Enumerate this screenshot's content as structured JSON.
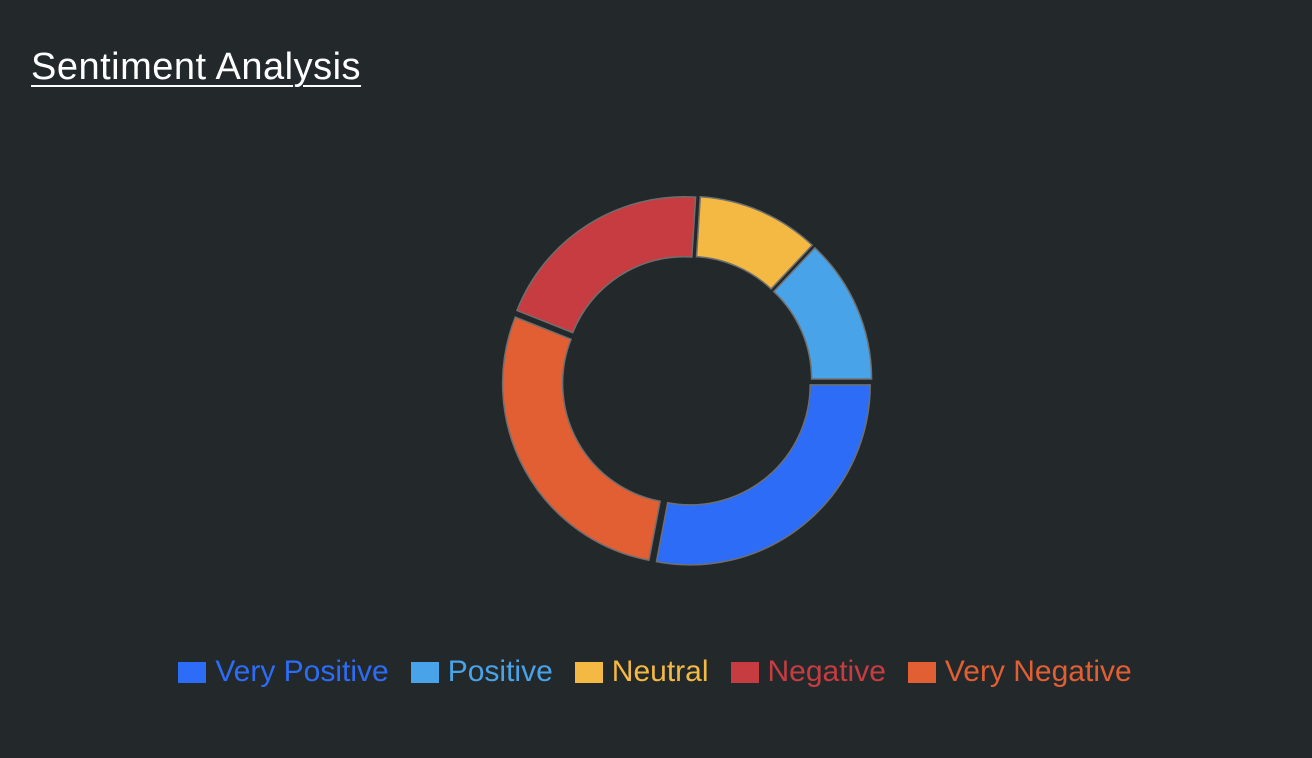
{
  "page": {
    "title": "Sentiment Analysis"
  },
  "chart_data": {
    "type": "pie",
    "variant": "donut",
    "title": "Sentiment Analysis",
    "series": [
      {
        "name": "Very Positive",
        "value": 28,
        "color": "#2d6cf6"
      },
      {
        "name": "Very Negative",
        "value": 28,
        "color": "#e25e33"
      },
      {
        "name": "Negative",
        "value": 20,
        "color": "#c73c41"
      },
      {
        "name": "Neutral",
        "value": 11,
        "color": "#f4b942"
      },
      {
        "name": "Positive",
        "value": 13,
        "color": "#49a3e8"
      }
    ],
    "legend_order": [
      "Very Positive",
      "Positive",
      "Neutral",
      "Negative",
      "Very Negative"
    ],
    "legend_position": "bottom",
    "background": "#23292b"
  }
}
